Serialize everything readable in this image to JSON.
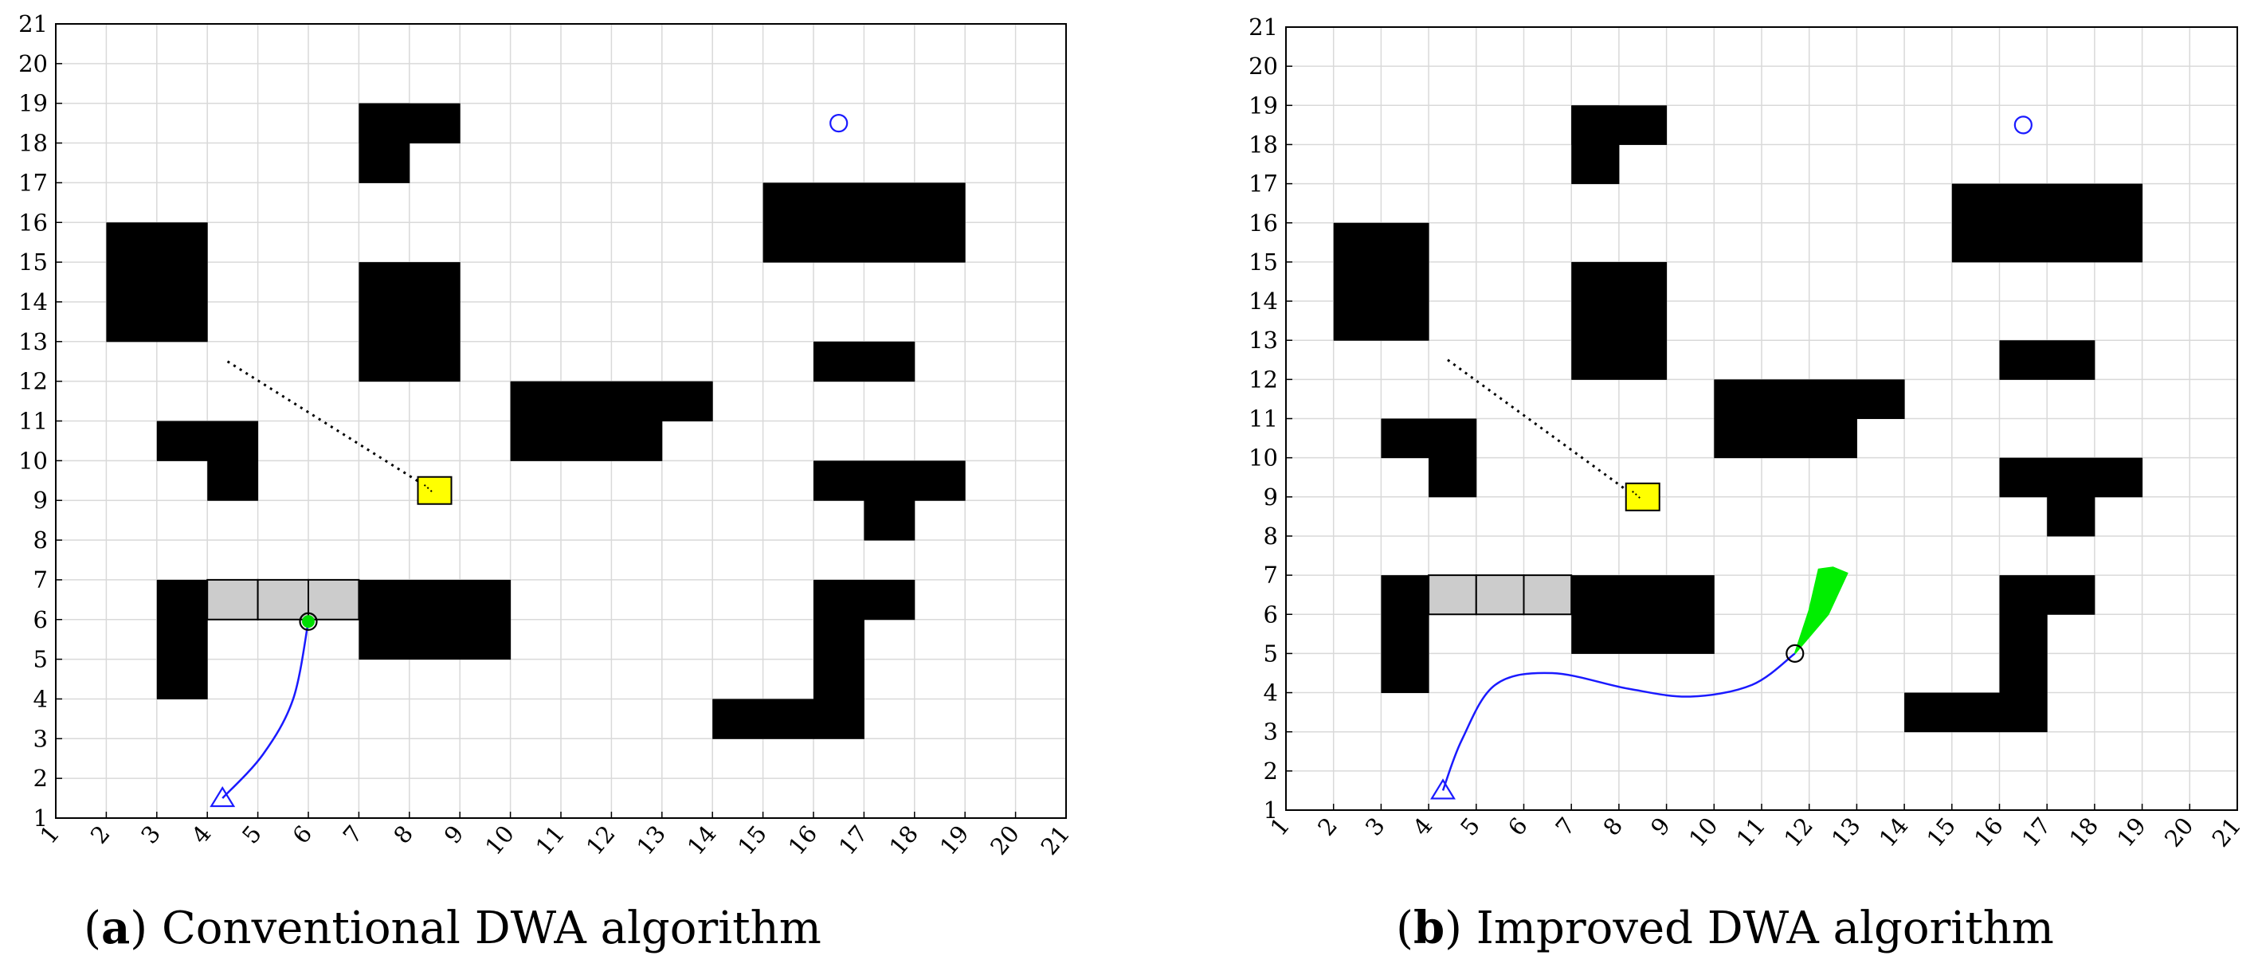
{
  "panels": [
    {
      "id": "a",
      "caption_letter": "a",
      "caption_text": "Conventional DWA algorithm",
      "obstacles": [
        [
          7,
          17,
          1,
          2
        ],
        [
          7,
          18,
          2,
          1
        ],
        [
          2,
          13,
          2,
          3
        ],
        [
          15,
          15,
          4,
          2
        ],
        [
          7,
          12,
          2,
          3
        ],
        [
          16,
          12,
          2,
          1
        ],
        [
          10,
          11,
          4,
          1
        ],
        [
          10,
          10,
          3,
          1
        ],
        [
          3,
          10,
          2,
          1
        ],
        [
          4,
          9,
          1,
          1
        ],
        [
          16,
          9,
          3,
          1
        ],
        [
          17,
          8,
          1,
          1
        ],
        [
          3,
          4,
          1,
          3
        ],
        [
          7,
          5,
          3,
          2
        ],
        [
          16,
          6,
          2,
          1
        ],
        [
          16,
          3,
          1,
          3
        ],
        [
          14,
          3,
          2,
          1
        ]
      ],
      "gray_cells": [
        [
          4,
          6
        ],
        [
          5,
          6
        ],
        [
          6,
          6
        ]
      ],
      "goal": {
        "x": 16.5,
        "y": 18.5
      },
      "start": {
        "x": 4.3,
        "y": 1.5
      },
      "robot": {
        "x": 6.0,
        "y": 5.95
      },
      "yellow_box": {
        "x": 8.5,
        "y": 9.25
      },
      "dotted_line": [
        [
          4.4,
          12.5
        ],
        [
          8.4,
          9.3
        ]
      ],
      "trajectory": [
        [
          4.3,
          1.5
        ],
        [
          5.1,
          2.6
        ],
        [
          5.7,
          4.0
        ],
        [
          6.0,
          5.95
        ]
      ],
      "fan": null
    },
    {
      "id": "b",
      "caption_letter": "b",
      "caption_text": "Improved DWA algorithm",
      "obstacles": [
        [
          7,
          17,
          1,
          2
        ],
        [
          7,
          18,
          2,
          1
        ],
        [
          2,
          13,
          2,
          3
        ],
        [
          15,
          15,
          4,
          2
        ],
        [
          7,
          12,
          2,
          3
        ],
        [
          16,
          12,
          2,
          1
        ],
        [
          10,
          11,
          4,
          1
        ],
        [
          10,
          10,
          3,
          1
        ],
        [
          3,
          10,
          2,
          1
        ],
        [
          4,
          9,
          1,
          1
        ],
        [
          16,
          9,
          3,
          1
        ],
        [
          17,
          8,
          1,
          1
        ],
        [
          3,
          4,
          1,
          3
        ],
        [
          7,
          5,
          3,
          2
        ],
        [
          16,
          6,
          2,
          1
        ],
        [
          16,
          3,
          1,
          3
        ],
        [
          14,
          3,
          2,
          1
        ]
      ],
      "gray_cells": [
        [
          4,
          6
        ],
        [
          5,
          6
        ],
        [
          6,
          6
        ]
      ],
      "goal": {
        "x": 16.5,
        "y": 18.5
      },
      "start": {
        "x": 4.3,
        "y": 1.5
      },
      "robot": {
        "x": 11.7,
        "y": 5.0
      },
      "yellow_box": {
        "x": 8.5,
        "y": 9.0
      },
      "dotted_line": [
        [
          4.4,
          12.5
        ],
        [
          8.3,
          9.05
        ]
      ],
      "trajectory": [
        [
          4.3,
          1.5
        ],
        [
          4.7,
          2.8
        ],
        [
          5.4,
          4.2
        ],
        [
          6.6,
          4.5
        ],
        [
          8.2,
          4.1
        ],
        [
          9.5,
          3.9
        ],
        [
          10.8,
          4.2
        ],
        [
          11.7,
          5.0
        ]
      ],
      "fan": [
        [
          11.7,
          5.0
        ],
        [
          12.0,
          6.1
        ],
        [
          12.2,
          7.15
        ],
        [
          12.5,
          7.2
        ],
        [
          12.8,
          7.05
        ],
        [
          12.4,
          6.0
        ],
        [
          11.7,
          5.0
        ]
      ]
    }
  ],
  "axes": {
    "xmin": 1,
    "xmax": 21,
    "ymin": 1,
    "ymax": 21,
    "x_ticks": [
      "1",
      "2",
      "3",
      "4",
      "5",
      "6",
      "7",
      "8",
      "9",
      "10",
      "11",
      "12",
      "13",
      "14",
      "15",
      "16",
      "17",
      "18",
      "19",
      "20",
      "21"
    ],
    "y_ticks": [
      "1",
      "2",
      "3",
      "4",
      "5",
      "6",
      "7",
      "8",
      "9",
      "10",
      "11",
      "12",
      "13",
      "14",
      "15",
      "16",
      "17",
      "18",
      "19",
      "20",
      "21"
    ],
    "grid": true
  },
  "colors": {
    "obstacle": "#000000",
    "gray_cell": "#cccccc",
    "grid": "#d9d9d9",
    "trajectory": "#1a1aff",
    "goal": "#1a1aff",
    "start": "#1a1aff",
    "robot_dot": "#00dd00",
    "fan": "#00ee00",
    "yellow_box": "#ffff00"
  }
}
